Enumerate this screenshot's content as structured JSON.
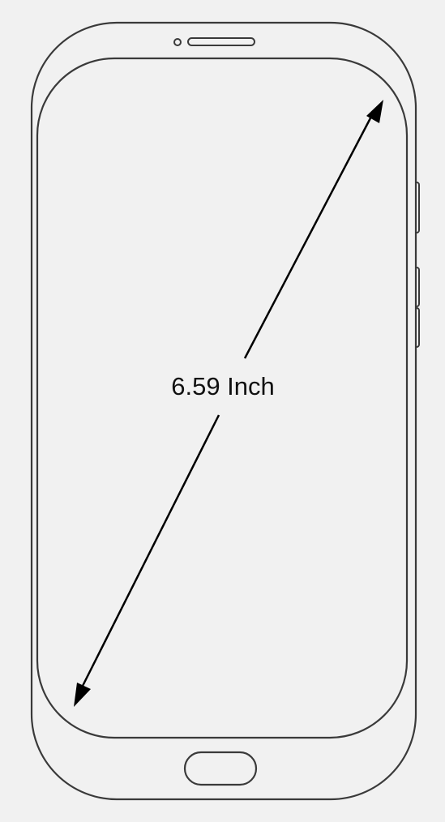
{
  "diagram": {
    "label": "6.59 Inch",
    "colors": {
      "background": "#f1f1f1",
      "outline": "#3a3a3a",
      "arrow": "#000000",
      "label_text": "#111111"
    }
  }
}
